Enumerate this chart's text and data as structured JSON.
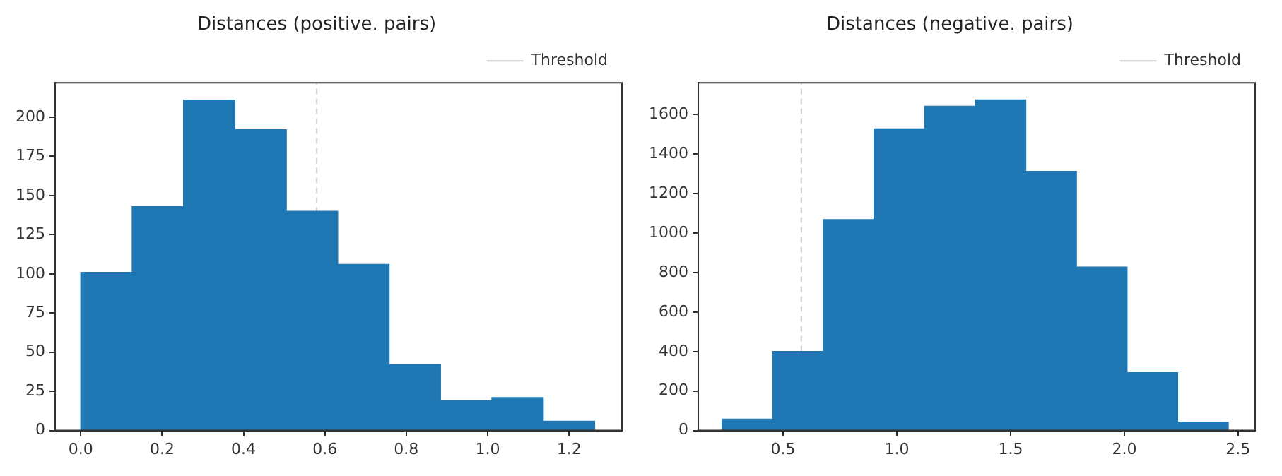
{
  "chart_data": [
    {
      "type": "histogram",
      "title": "Distances (positive. pairs)",
      "bins": [
        0,
        0.1263,
        0.2526,
        0.3789,
        0.5052,
        0.6315,
        0.7578,
        0.8841,
        1.0104,
        1.1367,
        1.263
      ],
      "values": [
        101,
        143,
        211,
        192,
        140,
        106,
        42,
        19,
        21,
        6
      ],
      "color": "#1f77b4",
      "xlim": [
        -0.063,
        1.33
      ],
      "xticks": [
        {
          "value": 0,
          "label": "0.0"
        },
        {
          "value": 0.2,
          "label": "0.2"
        },
        {
          "value": 0.4,
          "label": "0.4"
        },
        {
          "value": 0.6,
          "label": "0.6"
        },
        {
          "value": 0.8,
          "label": "0.8"
        },
        {
          "value": 1,
          "label": "1.0"
        },
        {
          "value": 1.2,
          "label": "1.2"
        }
      ],
      "ylim": [
        0,
        222
      ],
      "yticks": [
        0,
        25,
        50,
        75,
        100,
        125,
        150,
        175,
        200
      ],
      "grid": false,
      "legend": "top right",
      "ref_lines": [
        {
          "axis": "x",
          "value": 0.58,
          "label": "Threshold",
          "color": "#cccccc",
          "line_style": "dashed"
        }
      ]
    },
    {
      "type": "histogram",
      "title": "Distances (negative. pairs)",
      "bins": [
        0.232,
        0.4545,
        0.677,
        0.8995,
        1.122,
        1.3445,
        1.567,
        1.7895,
        2.012,
        2.2345,
        2.457
      ],
      "values": [
        58,
        401,
        1069,
        1529,
        1643,
        1675,
        1313,
        828,
        293,
        43
      ],
      "color": "#1f77b4",
      "xlim": [
        0.127,
        2.575
      ],
      "xticks": [
        {
          "value": 0.5,
          "label": "0.5"
        },
        {
          "value": 1,
          "label": "1.0"
        },
        {
          "value": 1.5,
          "label": "1.5"
        },
        {
          "value": 2,
          "label": "2.0"
        },
        {
          "value": 2.5,
          "label": "2.5"
        }
      ],
      "ylim": [
        0,
        1762
      ],
      "yticks": [
        0,
        200,
        400,
        600,
        800,
        1000,
        1200,
        1400,
        1600
      ],
      "grid": false,
      "legend": "top right",
      "ref_lines": [
        {
          "axis": "x",
          "value": 0.58,
          "label": "Threshold",
          "color": "#cccccc",
          "line_style": "dashed"
        }
      ]
    }
  ]
}
